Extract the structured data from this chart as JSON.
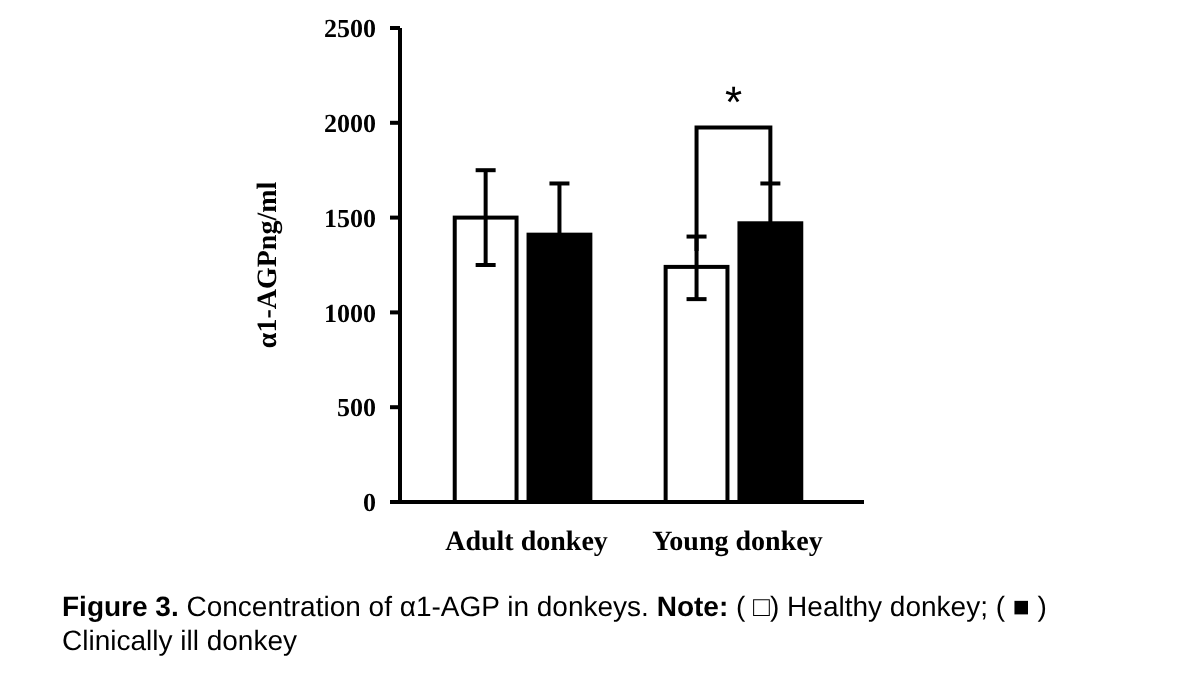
{
  "chart_data": {
    "type": "bar",
    "ylabel": "α1-AGPng/ml",
    "categories": [
      "Adult donkey",
      "Young donkey"
    ],
    "series": [
      {
        "color": "#ffffff",
        "values": [
          1500,
          1240
        ],
        "errors": [
          250,
          [
            1070,
            1400
          ]
        ]
      },
      {
        "color": "#000000",
        "values": [
          1410,
          1470
        ],
        "errors": [
          270,
          210
        ]
      }
    ],
    "ylim": [
      0,
      2500
    ],
    "yticks": [
      0,
      500,
      1000,
      1500,
      2000,
      2500
    ],
    "annotations": [
      "Figure 3.",
      "Concentration of α1-AGP in donkeys.",
      "Note:",
      "( □) Healthy donkey; ( ■ ) Clinically ill donkey",
      "*"
    ]
  }
}
